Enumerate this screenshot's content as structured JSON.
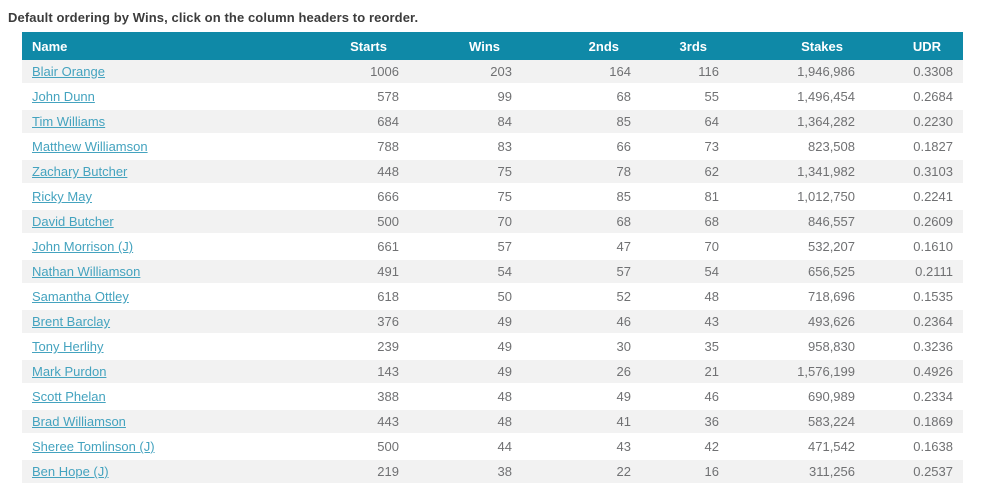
{
  "page": {
    "instruction": "Default ordering by Wins, click on the column headers to reorder."
  },
  "colors": {
    "header_bg": "#0f89a7",
    "header_text": "#ffffff",
    "link": "#44a3bf",
    "row_alt_bg": "#f2f2f2",
    "cell_text": "#707173"
  },
  "table": {
    "columns": [
      {
        "key": "name",
        "label": "Name"
      },
      {
        "key": "starts",
        "label": "Starts"
      },
      {
        "key": "wins",
        "label": "Wins"
      },
      {
        "key": "seconds",
        "label": "2nds"
      },
      {
        "key": "thirds",
        "label": "3rds"
      },
      {
        "key": "stakes",
        "label": "Stakes"
      },
      {
        "key": "udr",
        "label": "UDR"
      }
    ],
    "default_sort_column": "Wins",
    "rows": [
      {
        "name": "Blair Orange",
        "starts": "1006",
        "wins": "203",
        "seconds": "164",
        "thirds": "116",
        "stakes": "1,946,986",
        "udr": "0.3308"
      },
      {
        "name": "John Dunn",
        "starts": "578",
        "wins": "99",
        "seconds": "68",
        "thirds": "55",
        "stakes": "1,496,454",
        "udr": "0.2684"
      },
      {
        "name": "Tim Williams",
        "starts": "684",
        "wins": "84",
        "seconds": "85",
        "thirds": "64",
        "stakes": "1,364,282",
        "udr": "0.2230"
      },
      {
        "name": "Matthew Williamson",
        "starts": "788",
        "wins": "83",
        "seconds": "66",
        "thirds": "73",
        "stakes": "823,508",
        "udr": "0.1827"
      },
      {
        "name": "Zachary Butcher",
        "starts": "448",
        "wins": "75",
        "seconds": "78",
        "thirds": "62",
        "stakes": "1,341,982",
        "udr": "0.3103"
      },
      {
        "name": "Ricky May",
        "starts": "666",
        "wins": "75",
        "seconds": "85",
        "thirds": "81",
        "stakes": "1,012,750",
        "udr": "0.2241"
      },
      {
        "name": "David Butcher",
        "starts": "500",
        "wins": "70",
        "seconds": "68",
        "thirds": "68",
        "stakes": "846,557",
        "udr": "0.2609"
      },
      {
        "name": "John Morrison (J)",
        "starts": "661",
        "wins": "57",
        "seconds": "47",
        "thirds": "70",
        "stakes": "532,207",
        "udr": "0.1610"
      },
      {
        "name": "Nathan Williamson",
        "starts": "491",
        "wins": "54",
        "seconds": "57",
        "thirds": "54",
        "stakes": "656,525",
        "udr": "0.2111"
      },
      {
        "name": "Samantha Ottley",
        "starts": "618",
        "wins": "50",
        "seconds": "52",
        "thirds": "48",
        "stakes": "718,696",
        "udr": "0.1535"
      },
      {
        "name": "Brent Barclay",
        "starts": "376",
        "wins": "49",
        "seconds": "46",
        "thirds": "43",
        "stakes": "493,626",
        "udr": "0.2364"
      },
      {
        "name": "Tony Herlihy",
        "starts": "239",
        "wins": "49",
        "seconds": "30",
        "thirds": "35",
        "stakes": "958,830",
        "udr": "0.3236"
      },
      {
        "name": "Mark Purdon",
        "starts": "143",
        "wins": "49",
        "seconds": "26",
        "thirds": "21",
        "stakes": "1,576,199",
        "udr": "0.4926"
      },
      {
        "name": "Scott Phelan",
        "starts": "388",
        "wins": "48",
        "seconds": "49",
        "thirds": "46",
        "stakes": "690,989",
        "udr": "0.2334"
      },
      {
        "name": "Brad Williamson",
        "starts": "443",
        "wins": "48",
        "seconds": "41",
        "thirds": "36",
        "stakes": "583,224",
        "udr": "0.1869"
      },
      {
        "name": "Sheree Tomlinson (J)",
        "starts": "500",
        "wins": "44",
        "seconds": "43",
        "thirds": "42",
        "stakes": "471,542",
        "udr": "0.1638"
      },
      {
        "name": "Ben Hope (J)",
        "starts": "219",
        "wins": "38",
        "seconds": "22",
        "thirds": "16",
        "stakes": "311,256",
        "udr": "0.2537"
      }
    ]
  }
}
